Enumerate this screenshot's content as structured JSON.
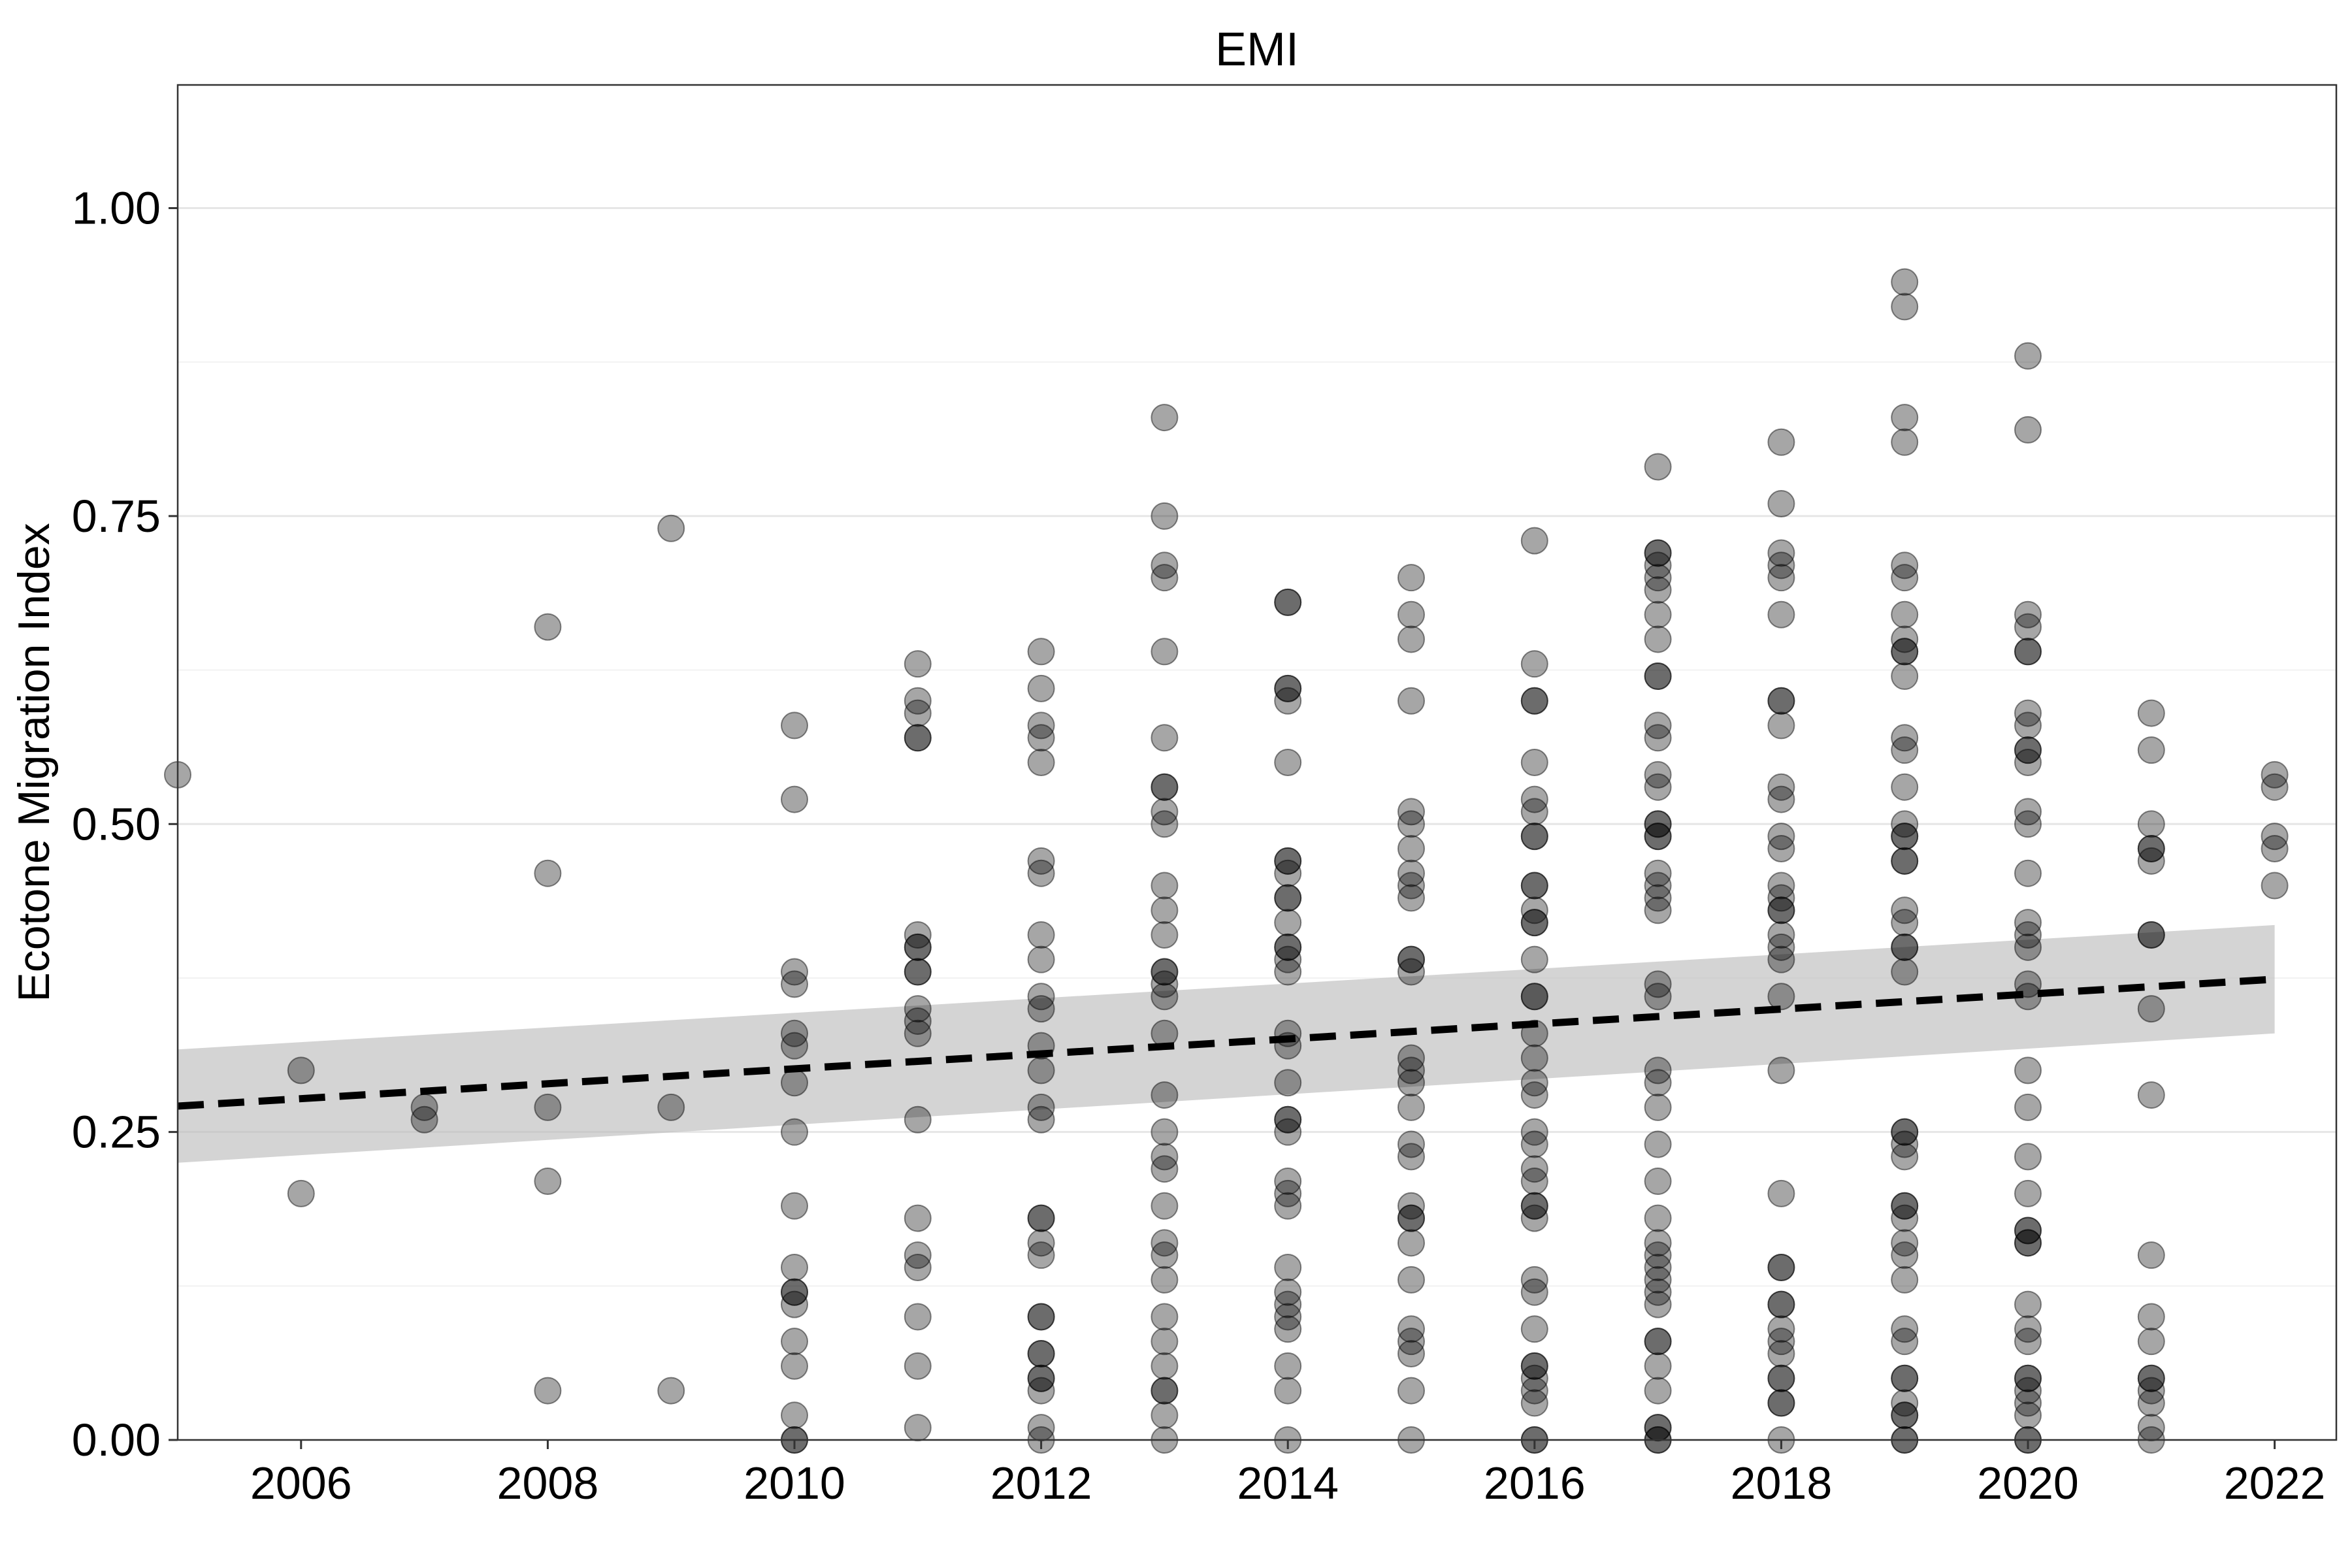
{
  "chart_data": {
    "type": "scatter",
    "title": "EMI",
    "xlabel": "",
    "ylabel": "Ecotone Migration Index",
    "xlim": [
      2005,
      2022.5
    ],
    "ylim": [
      0,
      1.1
    ],
    "x_ticks": [
      "2006",
      "2008",
      "2010",
      "2012",
      "2014",
      "2016",
      "2018",
      "2020",
      "2022"
    ],
    "y_ticks": [
      "0.00",
      "0.25",
      "0.50",
      "0.75",
      "1.00"
    ],
    "grid": true,
    "legend": "none",
    "point_color": "#000000",
    "point_opacity": 0.35,
    "trend": {
      "type": "linear",
      "x": [
        2005,
        2022
      ],
      "y": [
        0.271,
        0.374
      ],
      "ci_upper": [
        0.317,
        0.418
      ],
      "ci_lower": [
        0.225,
        0.33
      ],
      "line_color": "#000000",
      "band_color": "#bdbdbd"
    },
    "points": [
      {
        "year": 2005,
        "values": [
          0.54
        ]
      },
      {
        "year": 2006,
        "values": [
          0.3,
          0.2
        ]
      },
      {
        "year": 2007,
        "values": [
          0.27,
          0.26
        ]
      },
      {
        "year": 2008,
        "values": [
          0.66,
          0.46,
          0.27,
          0.21,
          0.04
        ]
      },
      {
        "year": 2009,
        "values": [
          0.74,
          0.27,
          0.04
        ]
      },
      {
        "year": 2010,
        "values": [
          0.58,
          0.52,
          0.38,
          0.37,
          0.33,
          0.32,
          0.29,
          0.25,
          0.19,
          0.14,
          0.12,
          0.12,
          0.11,
          0.08,
          0.06,
          0.02,
          0.0,
          0.0
        ]
      },
      {
        "year": 2011,
        "values": [
          0.63,
          0.6,
          0.59,
          0.57,
          0.57,
          0.41,
          0.4,
          0.4,
          0.38,
          0.38,
          0.35,
          0.34,
          0.33,
          0.26,
          0.18,
          0.15,
          0.14,
          0.1,
          0.06,
          0.01
        ]
      },
      {
        "year": 2012,
        "values": [
          0.64,
          0.61,
          0.58,
          0.57,
          0.55,
          0.47,
          0.46,
          0.41,
          0.39,
          0.36,
          0.35,
          0.32,
          0.3,
          0.27,
          0.26,
          0.18,
          0.18,
          0.16,
          0.15,
          0.1,
          0.1,
          0.07,
          0.07,
          0.05,
          0.05,
          0.04,
          0.01,
          0.0
        ]
      },
      {
        "year": 2013,
        "values": [
          0.83,
          0.75,
          0.71,
          0.7,
          0.64,
          0.57,
          0.53,
          0.53,
          0.51,
          0.5,
          0.45,
          0.43,
          0.41,
          0.38,
          0.38,
          0.37,
          0.36,
          0.33,
          0.28,
          0.25,
          0.23,
          0.22,
          0.19,
          0.16,
          0.15,
          0.13,
          0.1,
          0.08,
          0.06,
          0.04,
          0.04,
          0.02,
          0.0
        ]
      },
      {
        "year": 2014,
        "values": [
          0.68,
          0.68,
          0.61,
          0.61,
          0.6,
          0.55,
          0.47,
          0.47,
          0.46,
          0.44,
          0.44,
          0.42,
          0.4,
          0.4,
          0.39,
          0.38,
          0.33,
          0.32,
          0.29,
          0.26,
          0.26,
          0.25,
          0.21,
          0.2,
          0.19,
          0.14,
          0.12,
          0.11,
          0.1,
          0.09,
          0.06,
          0.04,
          0.0
        ]
      },
      {
        "year": 2015,
        "values": [
          0.7,
          0.67,
          0.65,
          0.6,
          0.51,
          0.5,
          0.48,
          0.46,
          0.45,
          0.44,
          0.39,
          0.39,
          0.38,
          0.31,
          0.3,
          0.29,
          0.27,
          0.24,
          0.23,
          0.19,
          0.18,
          0.18,
          0.16,
          0.13,
          0.09,
          0.08,
          0.07,
          0.04,
          0.0
        ]
      },
      {
        "year": 2016,
        "values": [
          0.73,
          0.63,
          0.6,
          0.6,
          0.55,
          0.52,
          0.51,
          0.49,
          0.49,
          0.45,
          0.45,
          0.43,
          0.42,
          0.42,
          0.39,
          0.36,
          0.36,
          0.33,
          0.31,
          0.29,
          0.28,
          0.25,
          0.24,
          0.22,
          0.21,
          0.19,
          0.19,
          0.18,
          0.13,
          0.12,
          0.09,
          0.06,
          0.06,
          0.05,
          0.04,
          0.03,
          0.0,
          0.0
        ]
      },
      {
        "year": 2017,
        "values": [
          0.79,
          0.72,
          0.72,
          0.71,
          0.7,
          0.69,
          0.67,
          0.65,
          0.62,
          0.62,
          0.58,
          0.57,
          0.54,
          0.53,
          0.5,
          0.5,
          0.49,
          0.49,
          0.46,
          0.45,
          0.44,
          0.43,
          0.37,
          0.36,
          0.3,
          0.29,
          0.27,
          0.24,
          0.21,
          0.18,
          0.16,
          0.15,
          0.14,
          0.13,
          0.12,
          0.11,
          0.08,
          0.08,
          0.06,
          0.04,
          0.01,
          0.01,
          0.0,
          0.0
        ]
      },
      {
        "year": 2018,
        "values": [
          0.81,
          0.76,
          0.72,
          0.71,
          0.7,
          0.67,
          0.6,
          0.6,
          0.58,
          0.53,
          0.52,
          0.49,
          0.48,
          0.45,
          0.44,
          0.43,
          0.43,
          0.41,
          0.4,
          0.39,
          0.36,
          0.3,
          0.2,
          0.14,
          0.14,
          0.11,
          0.11,
          0.09,
          0.08,
          0.07,
          0.05,
          0.05,
          0.03,
          0.03,
          0.0
        ]
      },
      {
        "year": 2019,
        "values": [
          0.94,
          0.92,
          0.83,
          0.81,
          0.71,
          0.7,
          0.67,
          0.65,
          0.64,
          0.64,
          0.62,
          0.57,
          0.56,
          0.53,
          0.5,
          0.49,
          0.49,
          0.47,
          0.47,
          0.43,
          0.42,
          0.4,
          0.4,
          0.38,
          0.25,
          0.25,
          0.24,
          0.23,
          0.19,
          0.19,
          0.18,
          0.16,
          0.15,
          0.13,
          0.09,
          0.08,
          0.05,
          0.05,
          0.03,
          0.02,
          0.02,
          0.0,
          0.0
        ]
      },
      {
        "year": 2020,
        "values": [
          0.88,
          0.82,
          0.67,
          0.66,
          0.64,
          0.64,
          0.59,
          0.58,
          0.56,
          0.56,
          0.55,
          0.51,
          0.5,
          0.46,
          0.42,
          0.41,
          0.4,
          0.37,
          0.36,
          0.3,
          0.27,
          0.23,
          0.2,
          0.17,
          0.17,
          0.16,
          0.16,
          0.11,
          0.09,
          0.08,
          0.05,
          0.05,
          0.04,
          0.03,
          0.02,
          0.0,
          0.0
        ]
      },
      {
        "year": 2021,
        "values": [
          0.59,
          0.56,
          0.5,
          0.48,
          0.48,
          0.47,
          0.41,
          0.41,
          0.35,
          0.28,
          0.15,
          0.1,
          0.08,
          0.05,
          0.05,
          0.04,
          0.03,
          0.01,
          0.0
        ]
      },
      {
        "year": 2022,
        "values": [
          0.54,
          0.53,
          0.49,
          0.48,
          0.45
        ]
      }
    ]
  }
}
